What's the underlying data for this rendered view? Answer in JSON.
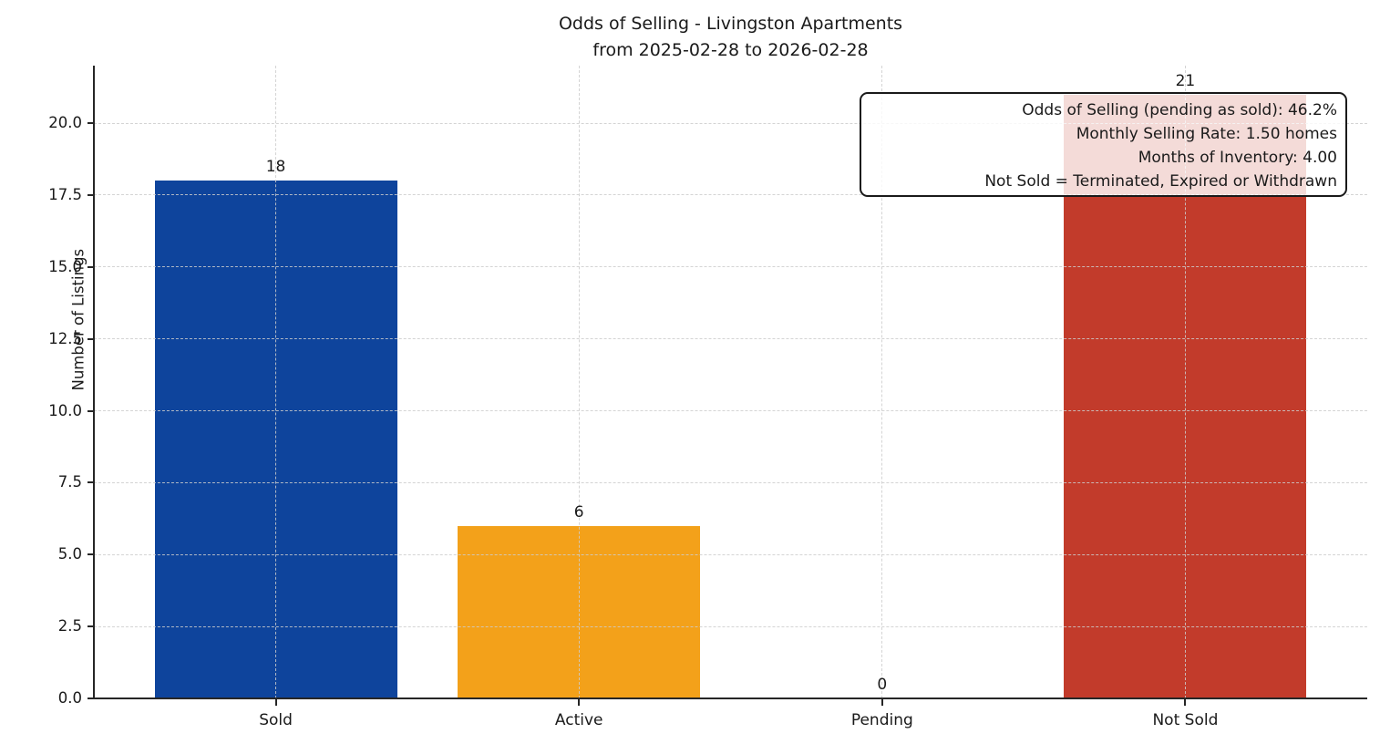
{
  "title": {
    "line1": "Odds of Selling - Livingston Apartments",
    "line2": "from 2025-02-28 to 2026-02-28"
  },
  "chart_data": {
    "type": "bar",
    "categories": [
      "Sold",
      "Active",
      "Pending",
      "Not Sold"
    ],
    "values": [
      18,
      6,
      0,
      21
    ],
    "bar_colors": [
      "#0e449c",
      "#f3a11a",
      null,
      "#c23b2b"
    ],
    "value_labels": [
      "18",
      "6",
      "0",
      "21"
    ],
    "title": "Odds of Selling - Livingston Apartments from 2025-02-28 to 2026-02-28",
    "xlabel": "",
    "ylabel": "Number of Listings",
    "ylim": [
      0,
      22
    ],
    "y_ticks": [
      "0.0",
      "2.5",
      "5.0",
      "7.5",
      "10.0",
      "12.5",
      "15.0",
      "17.5",
      "20.0"
    ],
    "grid": true,
    "grid_style": "dashed",
    "legend": "none"
  },
  "annotation": {
    "lines": [
      "Odds of Selling (pending as sold): 46.2%",
      "Monthly Selling Rate: 1.50 homes",
      "Months of Inventory: 4.00",
      "Not Sold = Terminated, Expired or Withdrawn"
    ]
  }
}
